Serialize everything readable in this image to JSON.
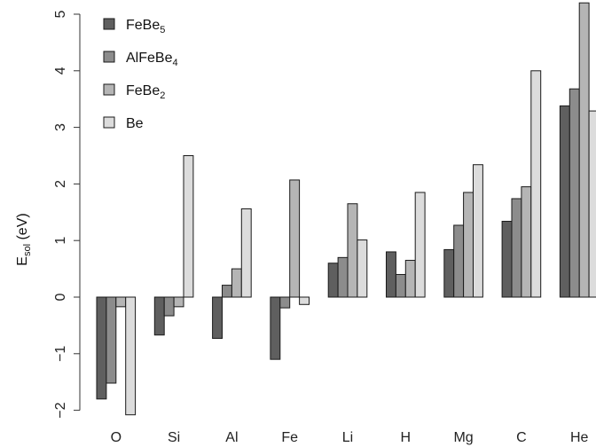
{
  "chart_data": {
    "type": "bar",
    "categories": [
      "O",
      "Si",
      "Al",
      "Fe",
      "Li",
      "H",
      "Mg",
      "C",
      "He"
    ],
    "series": [
      {
        "name": "FeBe",
        "sub": "5",
        "color": "#5f5f5f",
        "values": [
          -1.8,
          -0.67,
          -0.73,
          -1.1,
          0.6,
          0.8,
          0.84,
          1.34,
          3.38
        ]
      },
      {
        "name": "AlFeBe",
        "sub": "4",
        "color": "#8c8c8c",
        "values": [
          -1.52,
          -0.33,
          0.21,
          -0.19,
          0.7,
          0.4,
          1.27,
          1.74,
          3.68
        ]
      },
      {
        "name": "FeBe",
        "sub": "2",
        "color": "#b5b5b5",
        "values": [
          -0.17,
          -0.17,
          0.5,
          2.07,
          1.65,
          0.65,
          1.85,
          1.95,
          5.2
        ]
      },
      {
        "name": "Be",
        "sub": "",
        "color": "#dcdcdc",
        "values": [
          -2.08,
          2.5,
          1.56,
          -0.13,
          1.01,
          1.85,
          2.34,
          4.0,
          3.29
        ]
      }
    ],
    "ylabel_main": "E",
    "ylabel_sub": "sol",
    "ylabel_unit": " (eV)",
    "yticks": [
      "−2",
      "−1",
      "0",
      "1",
      "2",
      "3",
      "4",
      "5"
    ],
    "ytick_values": [
      -2,
      -1,
      0,
      1,
      2,
      3,
      4,
      5
    ],
    "ylim": [
      -2.1,
      5.2
    ],
    "grid": false,
    "legend_position": "top-left"
  }
}
